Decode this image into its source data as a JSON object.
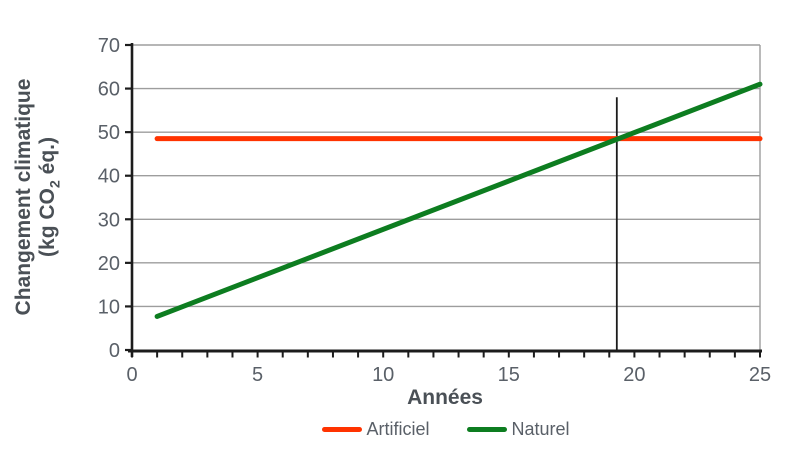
{
  "chart_data": {
    "type": "line",
    "title": "",
    "xlabel": "Années",
    "ylabel": {
      "line1": "Changement climatique",
      "line2_pre": "(kg CO",
      "line2_sub": "2",
      "line2_post": " éq.)"
    },
    "xlim": [
      0,
      25
    ],
    "ylim": [
      0,
      70
    ],
    "x_ticks": [
      0,
      5,
      10,
      15,
      20,
      25
    ],
    "y_ticks": [
      0,
      10,
      20,
      30,
      40,
      50,
      60,
      70
    ],
    "x_minor_tick_step": 1,
    "grid": "horizontal",
    "legend_position": "bottom",
    "series": [
      {
        "name": "Artificiel",
        "color": "#ff3300",
        "x": [
          1,
          25
        ],
        "y": [
          48.5,
          48.5
        ]
      },
      {
        "name": "Naturel",
        "color": "#0d7d20",
        "x": [
          1,
          25
        ],
        "y": [
          7.7,
          61
        ]
      }
    ],
    "annotations": [
      {
        "type": "vline",
        "x": 19.3,
        "y0": 0,
        "y1": 58,
        "color": "#1c1c1c"
      }
    ],
    "colors": {
      "grid": "#9d9d9d",
      "axis": "#1c1c1c",
      "tick_text": "#5a6068",
      "title_text": "#4a5056"
    }
  }
}
